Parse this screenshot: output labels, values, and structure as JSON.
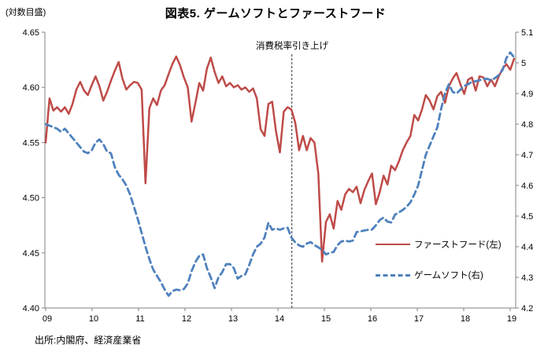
{
  "page": {
    "unit_label": "(対数目盛)",
    "title": "図表5. ゲームソフトとファーストフード",
    "annotation": "消費税率引き上げ",
    "source": "出所:内閣府、経済産業省"
  },
  "legend": {
    "items": [
      {
        "label": "ファーストフード(左)",
        "color": "#be4b48",
        "style": "solid"
      },
      {
        "label": "ゲームソフト(右)",
        "color": "#4f81bd",
        "style": "dashed"
      }
    ]
  },
  "chart_data": {
    "type": "line",
    "title": "図表5. ゲームソフトとファーストフード",
    "x_unit": "year 2009-2019, monthly points, ticks at each year",
    "x_tick_labels": [
      "09",
      "10",
      "11",
      "12",
      "13",
      "14",
      "15",
      "16",
      "17",
      "18",
      "19"
    ],
    "left_axis": {
      "label": "(対数目盛)",
      "max": 4.65,
      "min": 4.4,
      "tick_labels": [
        "4.65",
        "4.60",
        "4.55",
        "4.50",
        "4.45",
        "4.40"
      ]
    },
    "right_axis": {
      "max": 5.1,
      "min": 4.2,
      "tick_labels": [
        "5.1",
        "5",
        "4.9",
        "4.8",
        "4.7",
        "4.6",
        "4.5",
        "4.4",
        "4.3",
        "4.2"
      ]
    },
    "annotation": {
      "text": "消費税率引き上げ",
      "x_year_offset": 5.3
    },
    "axis_color": "#808080",
    "series": [
      {
        "name": "ファーストフード(左)",
        "axis": "left",
        "color": "#be4b48",
        "line_style": "solid",
        "start": "2009-01",
        "frequency": "monthly",
        "values": [
          4.55,
          4.59,
          4.579,
          4.582,
          4.578,
          4.582,
          4.576,
          4.585,
          4.598,
          4.605,
          4.597,
          4.593,
          4.602,
          4.61,
          4.601,
          4.588,
          4.596,
          4.606,
          4.615,
          4.623,
          4.608,
          4.598,
          4.602,
          4.605,
          4.604,
          4.598,
          4.513,
          4.581,
          4.59,
          4.584,
          4.597,
          4.602,
          4.612,
          4.621,
          4.628,
          4.62,
          4.609,
          4.6,
          4.569,
          4.586,
          4.604,
          4.597,
          4.617,
          4.627,
          4.614,
          4.604,
          4.61,
          4.601,
          4.604,
          4.6,
          4.602,
          4.598,
          4.6,
          4.596,
          4.599,
          4.59,
          4.562,
          4.556,
          4.585,
          4.587,
          4.56,
          4.541,
          4.578,
          4.582,
          4.58,
          4.568,
          4.543,
          4.556,
          4.543,
          4.554,
          4.55,
          4.522,
          4.442,
          4.478,
          4.485,
          4.472,
          4.497,
          4.489,
          4.503,
          4.508,
          4.505,
          4.51,
          4.495,
          4.507,
          4.515,
          4.522,
          4.494,
          4.505,
          4.52,
          4.512,
          4.529,
          4.525,
          4.533,
          4.543,
          4.55,
          4.556,
          4.575,
          4.57,
          4.58,
          4.593,
          4.588,
          4.58,
          4.592,
          4.596,
          4.586,
          4.601,
          4.608,
          4.613,
          4.603,
          4.594,
          4.607,
          4.609,
          4.597,
          4.61,
          4.609,
          4.601,
          4.607,
          4.601,
          4.61,
          4.617,
          4.621,
          4.616,
          4.626
        ]
      },
      {
        "name": "ゲームソフト(右)",
        "axis": "right",
        "color": "#4f81bd",
        "line_style": "dashed",
        "start": "2009-01",
        "frequency": "monthly",
        "values": [
          4.8,
          4.795,
          4.79,
          4.785,
          4.775,
          4.785,
          4.77,
          4.755,
          4.74,
          4.725,
          4.71,
          4.705,
          4.715,
          4.74,
          4.75,
          4.735,
          4.71,
          4.705,
          4.66,
          4.635,
          4.62,
          4.6,
          4.57,
          4.53,
          4.49,
          4.445,
          4.4,
          4.36,
          4.325,
          4.305,
          4.285,
          4.26,
          4.24,
          4.255,
          4.26,
          4.258,
          4.262,
          4.28,
          4.32,
          4.35,
          4.37,
          4.375,
          4.33,
          4.3,
          4.265,
          4.3,
          4.317,
          4.343,
          4.343,
          4.33,
          4.296,
          4.305,
          4.31,
          4.34,
          4.375,
          4.4,
          4.41,
          4.43,
          4.478,
          4.455,
          4.46,
          4.455,
          4.46,
          4.462,
          4.43,
          4.414,
          4.404,
          4.4,
          4.41,
          4.415,
          4.405,
          4.398,
          4.39,
          4.375,
          4.38,
          4.383,
          4.405,
          4.417,
          4.42,
          4.417,
          4.42,
          4.448,
          4.45,
          4.453,
          4.455,
          4.456,
          4.47,
          4.487,
          4.495,
          4.482,
          4.479,
          4.505,
          4.512,
          4.52,
          4.53,
          4.545,
          4.57,
          4.6,
          4.65,
          4.7,
          4.73,
          4.76,
          4.79,
          4.85,
          4.9,
          4.93,
          4.905,
          4.9,
          4.912,
          4.925,
          4.93,
          4.938,
          4.94,
          4.943,
          4.948,
          4.948,
          4.943,
          4.95,
          4.96,
          4.977,
          5.016,
          5.034,
          5.018
        ]
      }
    ]
  }
}
